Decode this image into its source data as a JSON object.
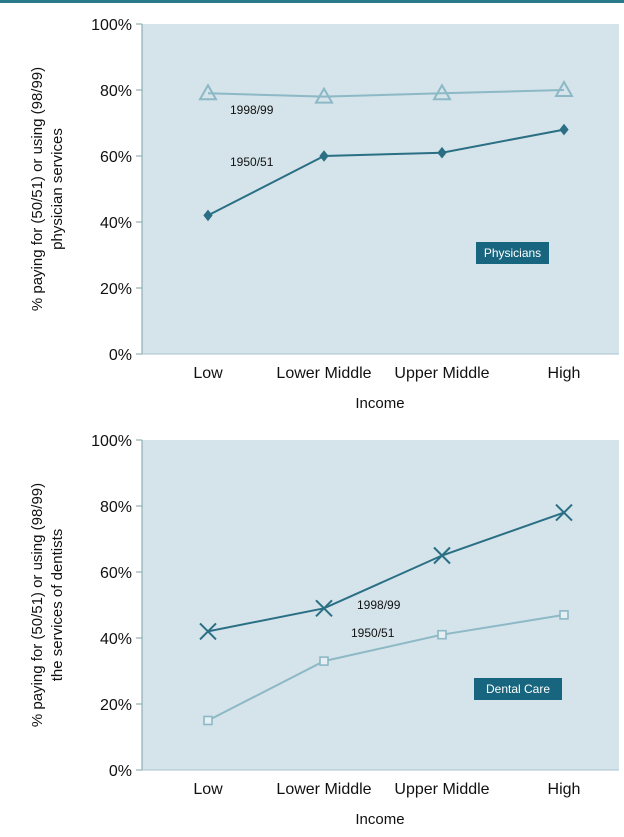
{
  "colors": {
    "plot_bg": "#d4e4ea",
    "dark_line": "#2b6f85",
    "light_line": "#8db8c6",
    "badge_bg": "#17657e",
    "topbar": "#2b7a8c"
  },
  "chart_data": [
    {
      "type": "line",
      "id": "physicians",
      "categories": [
        "Low",
        "Lower Middle",
        "Upper Middle",
        "High"
      ],
      "xlabel": "Income",
      "ylabel_line1": "% paying for (50/51) or using (98/99)",
      "ylabel_line2": "physician services",
      "ylim": [
        0,
        100
      ],
      "yticks": [
        "0%",
        "20%",
        "40%",
        "60%",
        "80%",
        "100%"
      ],
      "badge": "Physicians",
      "series": [
        {
          "name": "1998/99",
          "values": [
            79,
            78,
            79,
            80
          ],
          "marker": "triangle",
          "color": "#8db8c6"
        },
        {
          "name": "1950/51",
          "values": [
            42,
            60,
            61,
            68
          ],
          "marker": "diamond",
          "color": "#2b6f85"
        }
      ],
      "label_anchor": [
        {
          "series": 0,
          "point": 0
        },
        {
          "series": 1,
          "point": 0
        }
      ]
    },
    {
      "type": "line",
      "id": "dental",
      "categories": [
        "Low",
        "Lower Middle",
        "Upper Middle",
        "High"
      ],
      "xlabel": "Income",
      "ylabel_line1": "% paying for (50/51) or using (98/99)",
      "ylabel_line2": "the services of dentists",
      "ylim": [
        0,
        100
      ],
      "yticks": [
        "0%",
        "20%",
        "40%",
        "60%",
        "80%",
        "100%"
      ],
      "badge": "Dental Care",
      "series": [
        {
          "name": "1998/99",
          "values": [
            42,
            49,
            65,
            78
          ],
          "marker": "x",
          "color": "#2b6f85"
        },
        {
          "name": "1950/51",
          "values": [
            15,
            33,
            41,
            47
          ],
          "marker": "square",
          "color": "#8db8c6"
        }
      ],
      "label_anchor": [
        {
          "series": 0,
          "point": 1
        },
        {
          "series": 1,
          "point": 1
        }
      ]
    }
  ]
}
